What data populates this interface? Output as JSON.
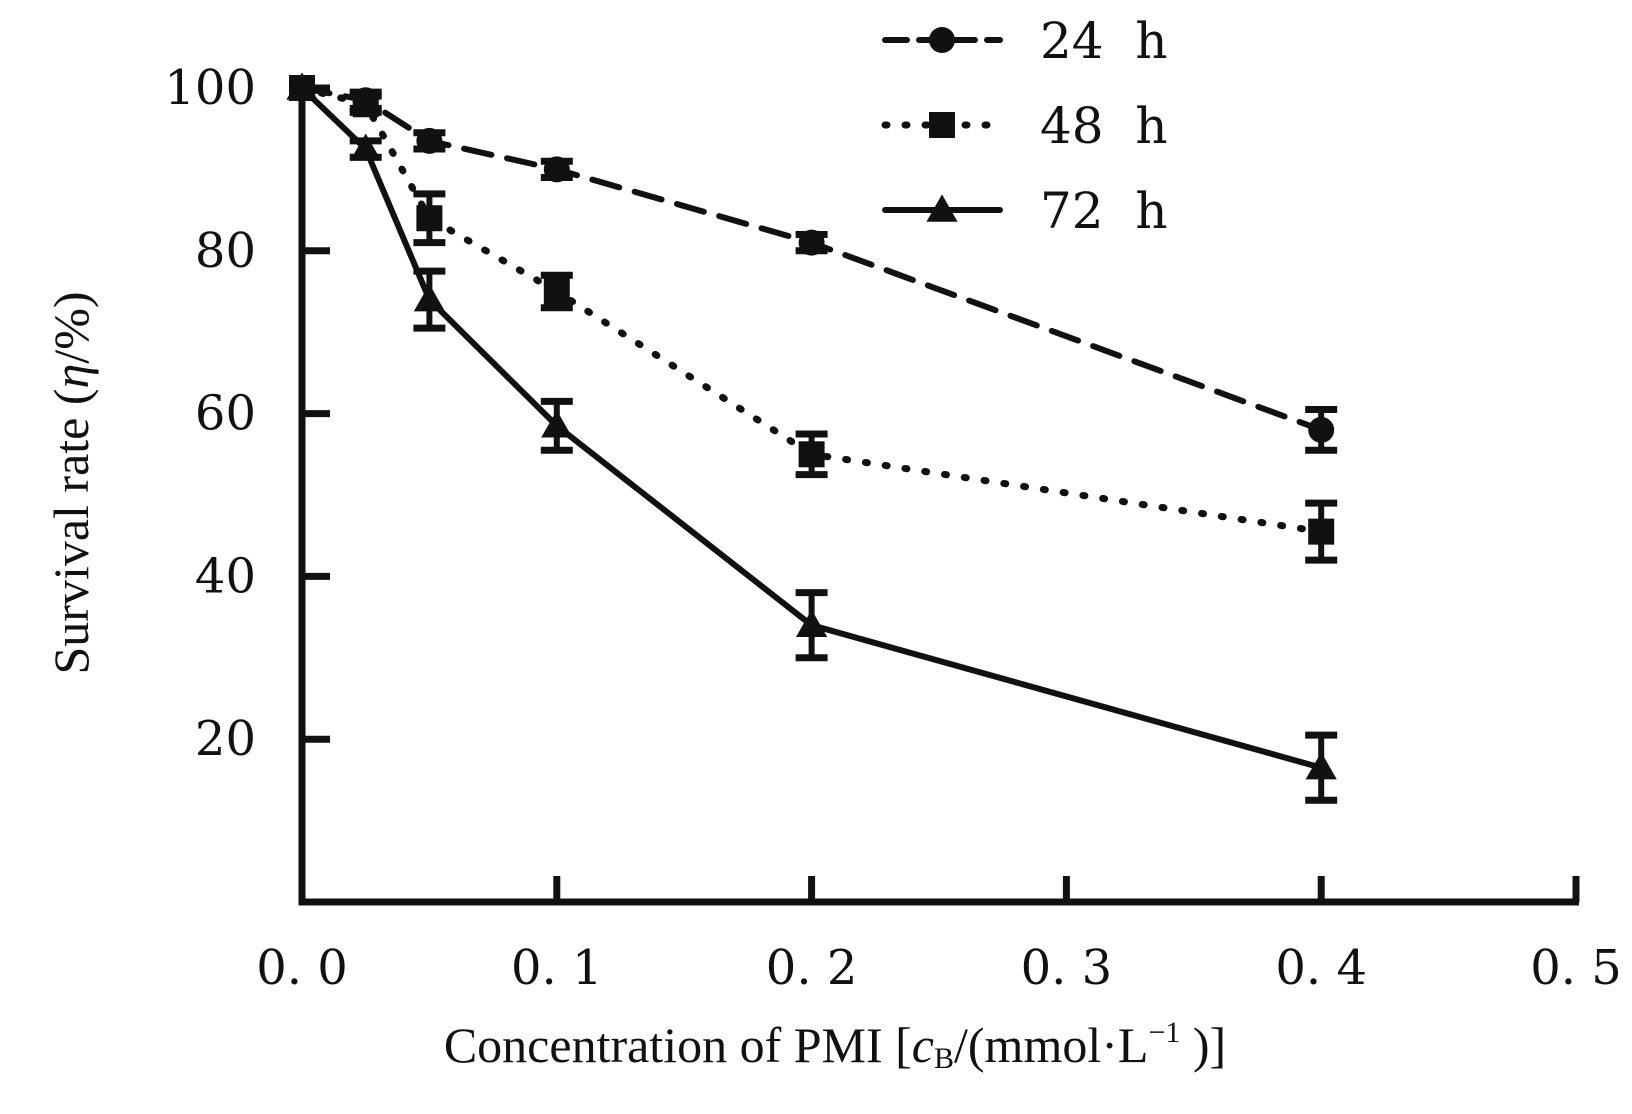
{
  "chart_data": {
    "type": "line",
    "title": "",
    "xlabel": "Concentration of PMI [cB/(mmol·L−1 )]",
    "xlabel_parts": {
      "before": "Concentration of PMI [",
      "italic": "c",
      "subscript": "B",
      "middle": "/(mmol",
      "dot": "·",
      "unit": "L",
      "superscript": "−1",
      "after": " )]"
    },
    "ylabel": "Survival rate (η/%)",
    "ylabel_parts": {
      "before": "Survival rate (",
      "italic": "η",
      "after": "/%)"
    },
    "xlim": [
      0,
      0.5
    ],
    "ylim": [
      0,
      100
    ],
    "xticks": [
      0.0,
      0.1,
      0.2,
      0.3,
      0.4,
      0.5
    ],
    "xtick_labels": [
      "0. 0",
      "0. 1",
      "0. 2",
      "0. 3",
      "0. 4",
      "0. 5"
    ],
    "yticks": [
      20,
      40,
      60,
      80,
      100
    ],
    "ytick_labels": [
      "20",
      "40",
      "60",
      "80",
      "100"
    ],
    "grid": false,
    "legend_position": "top-right",
    "series": [
      {
        "name": "24  h",
        "line_style": "dashed",
        "marker": "circle",
        "x": [
          0,
          0.025,
          0.05,
          0.1,
          0.2,
          0.4
        ],
        "y": [
          100,
          98.5,
          93.5,
          90,
          81,
          58
        ],
        "err": [
          0,
          1,
          1,
          1,
          1,
          2.5
        ]
      },
      {
        "name": "48  h",
        "line_style": "dotted",
        "marker": "square",
        "x": [
          0,
          0.025,
          0.05,
          0.1,
          0.2,
          0.4
        ],
        "y": [
          100,
          98,
          84,
          75,
          55,
          45.5
        ],
        "err": [
          0,
          1,
          3,
          2,
          2.5,
          3.5
        ]
      },
      {
        "name": "72  h",
        "line_style": "solid",
        "marker": "triangle",
        "x": [
          0,
          0.025,
          0.05,
          0.1,
          0.2,
          0.4
        ],
        "y": [
          100,
          92.5,
          74,
          58.5,
          34,
          16.5
        ],
        "err": [
          0,
          1,
          3.5,
          3,
          4,
          4
        ]
      }
    ],
    "colors": {
      "ink": "#111111",
      "background": "#ffffff"
    }
  }
}
